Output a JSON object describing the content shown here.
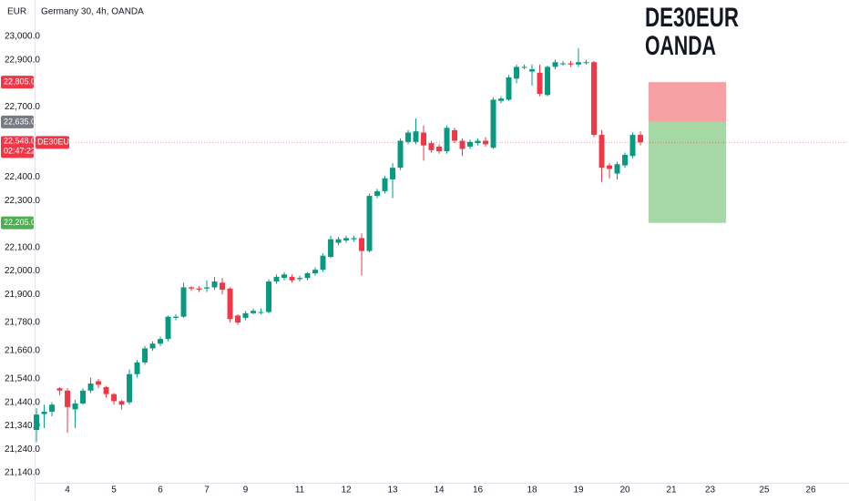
{
  "chart_data": {
    "type": "candlestick",
    "title": "Germany 30, 4h, OANDA",
    "currency": "EUR",
    "watermark": [
      "DE30EUR",
      "OANDA"
    ],
    "up_color": "#089981",
    "down_color": "#f23645",
    "candles": {
      "open": [
        21322,
        21390,
        21400,
        21500,
        21490,
        21410,
        21435,
        21490,
        21530,
        21505,
        21475,
        21445,
        21440,
        21560,
        21610,
        21670,
        21690,
        21710,
        21800,
        21805,
        21930,
        21925,
        21925,
        21930,
        21950,
        21925,
        21810,
        21800,
        21820,
        21825,
        21825,
        21955,
        21970,
        21975,
        21965,
        21970,
        21990,
        22005,
        22060,
        22120,
        22130,
        22135,
        22140,
        22085,
        22320,
        22340,
        22390,
        22440,
        22550,
        22550,
        22590,
        22545,
        22530,
        22510,
        22600,
        22555,
        22530,
        22545,
        22555,
        22525,
        22725,
        22730,
        22820,
        22870,
        22850,
        22845,
        22750,
        22870,
        22885,
        22885,
        22880,
        22890,
        22890,
        22580,
        22450,
        22415,
        22450,
        22490,
        22580
      ],
      "high": [
        21415,
        21430,
        21440,
        21505,
        21500,
        21450,
        21500,
        21545,
        21540,
        21510,
        21480,
        21450,
        21580,
        21620,
        21680,
        21700,
        21720,
        21810,
        21815,
        21950,
        21935,
        21935,
        21960,
        21975,
        21970,
        21930,
        21815,
        21830,
        21840,
        21840,
        21965,
        21985,
        21995,
        21985,
        21980,
        21995,
        22015,
        22075,
        22150,
        22145,
        22150,
        22150,
        22160,
        22330,
        22350,
        22405,
        22460,
        22565,
        22600,
        22650,
        22620,
        22555,
        22540,
        22620,
        22610,
        22565,
        22560,
        22565,
        22570,
        22740,
        22745,
        22835,
        22880,
        22880,
        22880,
        22880,
        22875,
        22900,
        22895,
        22895,
        22950,
        22900,
        22895,
        22600,
        22460,
        22465,
        22505,
        22590,
        22595
      ],
      "low": [
        21270,
        21330,
        21380,
        21470,
        21310,
        21330,
        21430,
        21480,
        21500,
        21460,
        21430,
        21410,
        21430,
        21545,
        21600,
        21660,
        21680,
        21700,
        21790,
        21800,
        21915,
        21910,
        21910,
        21920,
        21900,
        21780,
        21770,
        21790,
        21815,
        21815,
        21820,
        21945,
        21960,
        21950,
        21955,
        21960,
        21980,
        21995,
        22055,
        22110,
        22120,
        22125,
        21980,
        22080,
        22310,
        22330,
        22310,
        22430,
        22540,
        22540,
        22470,
        22505,
        22500,
        22500,
        22545,
        22490,
        22520,
        22535,
        22530,
        22520,
        22715,
        22725,
        22800,
        22860,
        22790,
        22745,
        22745,
        22860,
        22875,
        22870,
        22870,
        22880,
        22570,
        22380,
        22395,
        22390,
        22440,
        22480,
        22535
      ],
      "close": [
        21388,
        21400,
        21430,
        21490,
        21420,
        21435,
        21490,
        21520,
        21515,
        21475,
        21445,
        21430,
        21560,
        21610,
        21670,
        21690,
        21710,
        21805,
        21805,
        21930,
        21925,
        21920,
        21930,
        21955,
        21920,
        21795,
        21780,
        21820,
        21830,
        21825,
        21955,
        21975,
        21985,
        21960,
        21970,
        21990,
        22005,
        22065,
        22135,
        22135,
        22140,
        22140,
        22085,
        22320,
        22340,
        22395,
        22440,
        22555,
        22590,
        22595,
        22535,
        22515,
        22510,
        22610,
        22555,
        22520,
        22550,
        22555,
        22540,
        22730,
        22735,
        22825,
        22870,
        22870,
        22860,
        22755,
        22870,
        22890,
        22885,
        22880,
        22890,
        22890,
        22580,
        22440,
        22435,
        22455,
        22495,
        22580,
        22548
      ]
    },
    "ylim": [
      21097,
      23155
    ],
    "yticks": [
      {
        "value": 23000,
        "label": "23,000.0"
      },
      {
        "value": 22900,
        "label": "22,900.0"
      },
      {
        "value": 22700,
        "label": "22,700.0"
      },
      {
        "value": 22400,
        "label": "22,400.0"
      },
      {
        "value": 22300,
        "label": "22,300.0"
      },
      {
        "value": 22100,
        "label": "22,100.0"
      },
      {
        "value": 22000,
        "label": "22,000.0"
      },
      {
        "value": 21900,
        "label": "21,900.0"
      },
      {
        "value": 21780,
        "label": "21,780.0"
      },
      {
        "value": 21660,
        "label": "21,660.0"
      },
      {
        "value": 21540,
        "label": "21,540.0"
      },
      {
        "value": 21440,
        "label": "21,440.0"
      },
      {
        "value": 21340,
        "label": "21,340.0"
      },
      {
        "value": 21240,
        "label": "21,240.0"
      },
      {
        "value": 21140,
        "label": "21,140.0"
      }
    ],
    "xlim": [
      -0.24,
      104.94
    ],
    "xticks": [
      {
        "value": 4,
        "label": "4"
      },
      {
        "value": 10,
        "label": "5"
      },
      {
        "value": 16,
        "label": "6"
      },
      {
        "value": 22,
        "label": "7"
      },
      {
        "value": 27,
        "label": "9"
      },
      {
        "value": 34,
        "label": "11"
      },
      {
        "value": 40,
        "label": "12"
      },
      {
        "value": 46,
        "label": "13"
      },
      {
        "value": 52,
        "label": "14"
      },
      {
        "value": 57,
        "label": "16"
      },
      {
        "value": 64,
        "label": "18"
      },
      {
        "value": 70,
        "label": "19"
      },
      {
        "value": 76,
        "label": "20"
      },
      {
        "value": 82,
        "label": "21"
      },
      {
        "value": 87,
        "label": "23"
      },
      {
        "value": 94,
        "label": "25"
      },
      {
        "value": 100,
        "label": "26"
      }
    ],
    "price_labels": [
      {
        "value": 22805,
        "label": "22,805.0",
        "color": "#f23645"
      },
      {
        "value": 22635,
        "label": "22,635.0",
        "color": "#787b86"
      },
      {
        "value": 22205,
        "label": "22,205.0",
        "color": "#4caf50"
      }
    ],
    "position": {
      "stop_color": "#f7a1a5",
      "target_color": "#a5d8a5"
    },
    "last_price": {
      "value": 22548,
      "label": "22,548.0",
      "symbol": "DE30EUR",
      "countdown": "02:47:22",
      "color": "#f23645"
    }
  }
}
